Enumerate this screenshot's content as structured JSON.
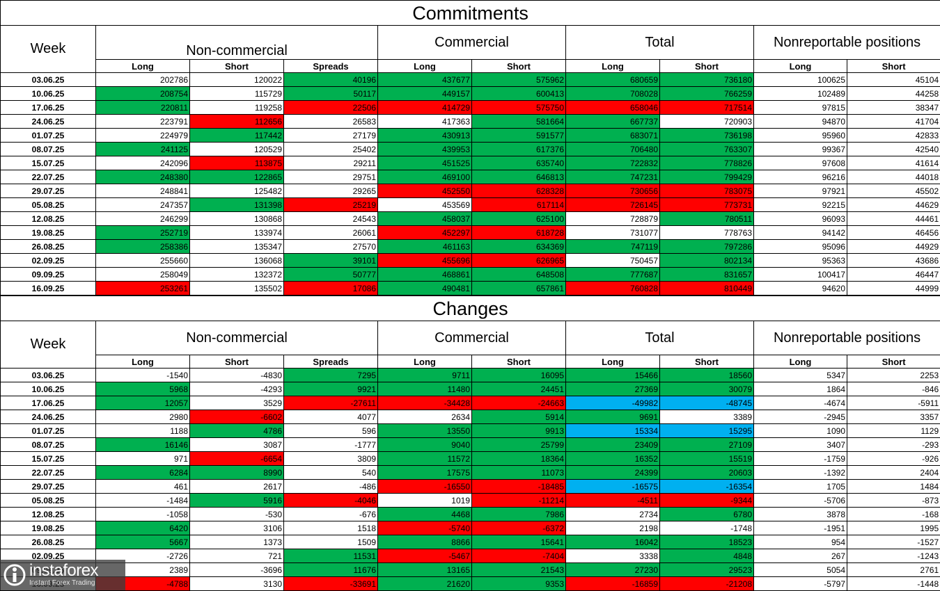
{
  "commitments": {
    "title": "Commitments",
    "week_label": "Week",
    "groups": [
      "Non-commercial",
      "Commercial",
      "Total",
      "Nonreportable positions"
    ],
    "subheaders": [
      "Long",
      "Short",
      "Spreads",
      "Long",
      "Short",
      "Long",
      "Short",
      "Long",
      "Short"
    ],
    "rows": [
      {
        "week": "03.06.25",
        "values": [
          "202786",
          "120022",
          "40196",
          "437677",
          "575962",
          "680659",
          "736180",
          "100625",
          "45104"
        ],
        "colors": [
          "w",
          "w",
          "g",
          "g",
          "g",
          "g",
          "g",
          "w",
          "w"
        ]
      },
      {
        "week": "10.06.25",
        "values": [
          "208754",
          "115729",
          "50117",
          "449157",
          "600413",
          "708028",
          "766259",
          "102489",
          "44258"
        ],
        "colors": [
          "g",
          "w",
          "g",
          "g",
          "g",
          "g",
          "g",
          "w",
          "w"
        ]
      },
      {
        "week": "17.06.25",
        "values": [
          "220811",
          "119258",
          "22506",
          "414729",
          "575750",
          "658046",
          "717514",
          "97815",
          "38347"
        ],
        "colors": [
          "g",
          "w",
          "r",
          "r",
          "r",
          "r",
          "r",
          "w",
          "w"
        ]
      },
      {
        "week": "24.06.25",
        "values": [
          "223791",
          "112656",
          "26583",
          "417363",
          "581664",
          "667737",
          "720903",
          "94870",
          "41704"
        ],
        "colors": [
          "w",
          "r",
          "w",
          "w",
          "g",
          "g",
          "w",
          "w",
          "w"
        ]
      },
      {
        "week": "01.07.25",
        "values": [
          "224979",
          "117442",
          "27179",
          "430913",
          "591577",
          "683071",
          "736198",
          "95960",
          "42833"
        ],
        "colors": [
          "w",
          "g",
          "w",
          "g",
          "g",
          "g",
          "g",
          "w",
          "w"
        ]
      },
      {
        "week": "08.07.25",
        "values": [
          "241125",
          "120529",
          "25402",
          "439953",
          "617376",
          "706480",
          "763307",
          "99367",
          "42540"
        ],
        "colors": [
          "g",
          "w",
          "w",
          "g",
          "g",
          "g",
          "g",
          "w",
          "w"
        ]
      },
      {
        "week": "15.07.25",
        "values": [
          "242096",
          "113875",
          "29211",
          "451525",
          "635740",
          "722832",
          "778826",
          "97608",
          "41614"
        ],
        "colors": [
          "w",
          "r",
          "w",
          "g",
          "g",
          "g",
          "g",
          "w",
          "w"
        ]
      },
      {
        "week": "22.07.25",
        "values": [
          "248380",
          "122865",
          "29751",
          "469100",
          "646813",
          "747231",
          "799429",
          "96216",
          "44018"
        ],
        "colors": [
          "g",
          "g",
          "w",
          "g",
          "g",
          "g",
          "g",
          "w",
          "w"
        ]
      },
      {
        "week": "29.07.25",
        "values": [
          "248841",
          "125482",
          "29265",
          "452550",
          "628328",
          "730656",
          "783075",
          "97921",
          "45502"
        ],
        "colors": [
          "w",
          "w",
          "w",
          "r",
          "r",
          "r",
          "r",
          "w",
          "w"
        ]
      },
      {
        "week": "05.08.25",
        "values": [
          "247357",
          "131398",
          "25219",
          "453569",
          "617114",
          "726145",
          "773731",
          "92215",
          "44629"
        ],
        "colors": [
          "w",
          "g",
          "r",
          "w",
          "r",
          "r",
          "r",
          "w",
          "w"
        ]
      },
      {
        "week": "12.08.25",
        "values": [
          "246299",
          "130868",
          "24543",
          "458037",
          "625100",
          "728879",
          "780511",
          "96093",
          "44461"
        ],
        "colors": [
          "w",
          "w",
          "w",
          "g",
          "g",
          "w",
          "g",
          "w",
          "w"
        ]
      },
      {
        "week": "19.08.25",
        "values": [
          "252719",
          "133974",
          "26061",
          "452297",
          "618728",
          "731077",
          "778763",
          "94142",
          "46456"
        ],
        "colors": [
          "g",
          "w",
          "w",
          "r",
          "r",
          "w",
          "w",
          "w",
          "w"
        ]
      },
      {
        "week": "26.08.25",
        "values": [
          "258386",
          "135347",
          "27570",
          "461163",
          "634369",
          "747119",
          "797286",
          "95096",
          "44929"
        ],
        "colors": [
          "g",
          "w",
          "w",
          "g",
          "g",
          "g",
          "g",
          "w",
          "w"
        ]
      },
      {
        "week": "02.09.25",
        "values": [
          "255660",
          "136068",
          "39101",
          "455696",
          "626965",
          "750457",
          "802134",
          "95363",
          "43686"
        ],
        "colors": [
          "w",
          "w",
          "g",
          "r",
          "r",
          "w",
          "g",
          "w",
          "w"
        ]
      },
      {
        "week": "09.09.25",
        "values": [
          "258049",
          "132372",
          "50777",
          "468861",
          "648508",
          "777687",
          "831657",
          "100417",
          "46447"
        ],
        "colors": [
          "w",
          "w",
          "g",
          "g",
          "g",
          "g",
          "g",
          "w",
          "w"
        ]
      },
      {
        "week": "16.09.25",
        "values": [
          "253261",
          "135502",
          "17086",
          "490481",
          "657861",
          "760828",
          "810449",
          "94620",
          "44999"
        ],
        "colors": [
          "r",
          "w",
          "r",
          "g",
          "g",
          "r",
          "r",
          "w",
          "w"
        ]
      }
    ]
  },
  "changes": {
    "title": "Changes",
    "week_label": "Week",
    "groups": [
      "Non-commercial",
      "Commercial",
      "Total",
      "Nonreportable positions"
    ],
    "subheaders": [
      "Long",
      "Short",
      "Spreads",
      "Long",
      "Short",
      "Long",
      "Short",
      "Long",
      "Short"
    ],
    "rows": [
      {
        "week": "03.06.25",
        "values": [
          "-1540",
          "-4830",
          "7295",
          "9711",
          "16095",
          "15466",
          "18560",
          "5347",
          "2253"
        ],
        "colors": [
          "w",
          "w",
          "g",
          "g",
          "g",
          "g",
          "g",
          "w",
          "w"
        ]
      },
      {
        "week": "10.06.25",
        "values": [
          "5968",
          "-4293",
          "9921",
          "11480",
          "24451",
          "27369",
          "30079",
          "1864",
          "-846"
        ],
        "colors": [
          "g",
          "w",
          "g",
          "g",
          "g",
          "g",
          "g",
          "w",
          "w"
        ]
      },
      {
        "week": "17.06.25",
        "values": [
          "12057",
          "3529",
          "-27611",
          "-34428",
          "-24663",
          "-49982",
          "-48745",
          "-4674",
          "-5911"
        ],
        "colors": [
          "g",
          "w",
          "r",
          "r",
          "r",
          "b",
          "b",
          "w",
          "w"
        ]
      },
      {
        "week": "24.06.25",
        "values": [
          "2980",
          "-6602",
          "4077",
          "2634",
          "5914",
          "9691",
          "3389",
          "-2945",
          "3357"
        ],
        "colors": [
          "w",
          "r",
          "w",
          "w",
          "g",
          "g",
          "w",
          "w",
          "w"
        ]
      },
      {
        "week": "01.07.25",
        "values": [
          "1188",
          "4786",
          "596",
          "13550",
          "9913",
          "15334",
          "15295",
          "1090",
          "1129"
        ],
        "colors": [
          "w",
          "g",
          "w",
          "g",
          "g",
          "b",
          "b",
          "w",
          "w"
        ]
      },
      {
        "week": "08.07.25",
        "values": [
          "16146",
          "3087",
          "-1777",
          "9040",
          "25799",
          "23409",
          "27109",
          "3407",
          "-293"
        ],
        "colors": [
          "g",
          "w",
          "w",
          "g",
          "g",
          "g",
          "g",
          "w",
          "w"
        ]
      },
      {
        "week": "15.07.25",
        "values": [
          "971",
          "-6654",
          "3809",
          "11572",
          "18364",
          "16352",
          "15519",
          "-1759",
          "-926"
        ],
        "colors": [
          "w",
          "r",
          "w",
          "g",
          "g",
          "g",
          "g",
          "w",
          "w"
        ]
      },
      {
        "week": "22.07.25",
        "values": [
          "6284",
          "8990",
          "540",
          "17575",
          "11073",
          "24399",
          "20603",
          "-1392",
          "2404"
        ],
        "colors": [
          "g",
          "g",
          "w",
          "g",
          "g",
          "g",
          "g",
          "w",
          "w"
        ]
      },
      {
        "week": "29.07.25",
        "values": [
          "461",
          "2617",
          "-486",
          "-16550",
          "-18485",
          "-16575",
          "-16354",
          "1705",
          "1484"
        ],
        "colors": [
          "w",
          "w",
          "w",
          "r",
          "r",
          "b",
          "b",
          "w",
          "w"
        ]
      },
      {
        "week": "05.08.25",
        "values": [
          "-1484",
          "5916",
          "-4046",
          "1019",
          "-11214",
          "-4511",
          "-9344",
          "-5706",
          "-873"
        ],
        "colors": [
          "w",
          "g",
          "r",
          "w",
          "r",
          "r",
          "r",
          "w",
          "w"
        ]
      },
      {
        "week": "12.08.25",
        "values": [
          "-1058",
          "-530",
          "-676",
          "4468",
          "7986",
          "2734",
          "6780",
          "3878",
          "-168"
        ],
        "colors": [
          "w",
          "w",
          "w",
          "g",
          "g",
          "w",
          "g",
          "w",
          "w"
        ]
      },
      {
        "week": "19.08.25",
        "values": [
          "6420",
          "3106",
          "1518",
          "-5740",
          "-6372",
          "2198",
          "-1748",
          "-1951",
          "1995"
        ],
        "colors": [
          "g",
          "w",
          "w",
          "r",
          "r",
          "w",
          "w",
          "w",
          "w"
        ]
      },
      {
        "week": "26.08.25",
        "values": [
          "5667",
          "1373",
          "1509",
          "8866",
          "15641",
          "16042",
          "18523",
          "954",
          "-1527"
        ],
        "colors": [
          "g",
          "w",
          "w",
          "g",
          "g",
          "g",
          "g",
          "w",
          "w"
        ]
      },
      {
        "week": "02.09.25",
        "values": [
          "-2726",
          "721",
          "11531",
          "-5467",
          "-7404",
          "3338",
          "4848",
          "267",
          "-1243"
        ],
        "colors": [
          "w",
          "w",
          "g",
          "r",
          "r",
          "w",
          "g",
          "w",
          "w"
        ]
      },
      {
        "week": "09.09.25",
        "values": [
          "2389",
          "-3696",
          "11676",
          "13165",
          "21543",
          "27230",
          "29523",
          "5054",
          "2761"
        ],
        "colors": [
          "w",
          "w",
          "g",
          "g",
          "g",
          "g",
          "g",
          "w",
          "w"
        ]
      },
      {
        "week": "16.09.25",
        "values": [
          "-4788",
          "3130",
          "-33691",
          "21620",
          "9353",
          "-16859",
          "-21208",
          "-5797",
          "-1448"
        ],
        "colors": [
          "r",
          "w",
          "r",
          "g",
          "g",
          "r",
          "r",
          "w",
          "w"
        ]
      }
    ]
  },
  "colors": {
    "green": "#00b050",
    "red": "#ff0000",
    "blue": "#00b0f0",
    "white": "#ffffff"
  },
  "watermark": {
    "brand": "instaforex",
    "tagline": "Instant Forex Trading",
    "icon": "instaforex-logo-icon"
  }
}
